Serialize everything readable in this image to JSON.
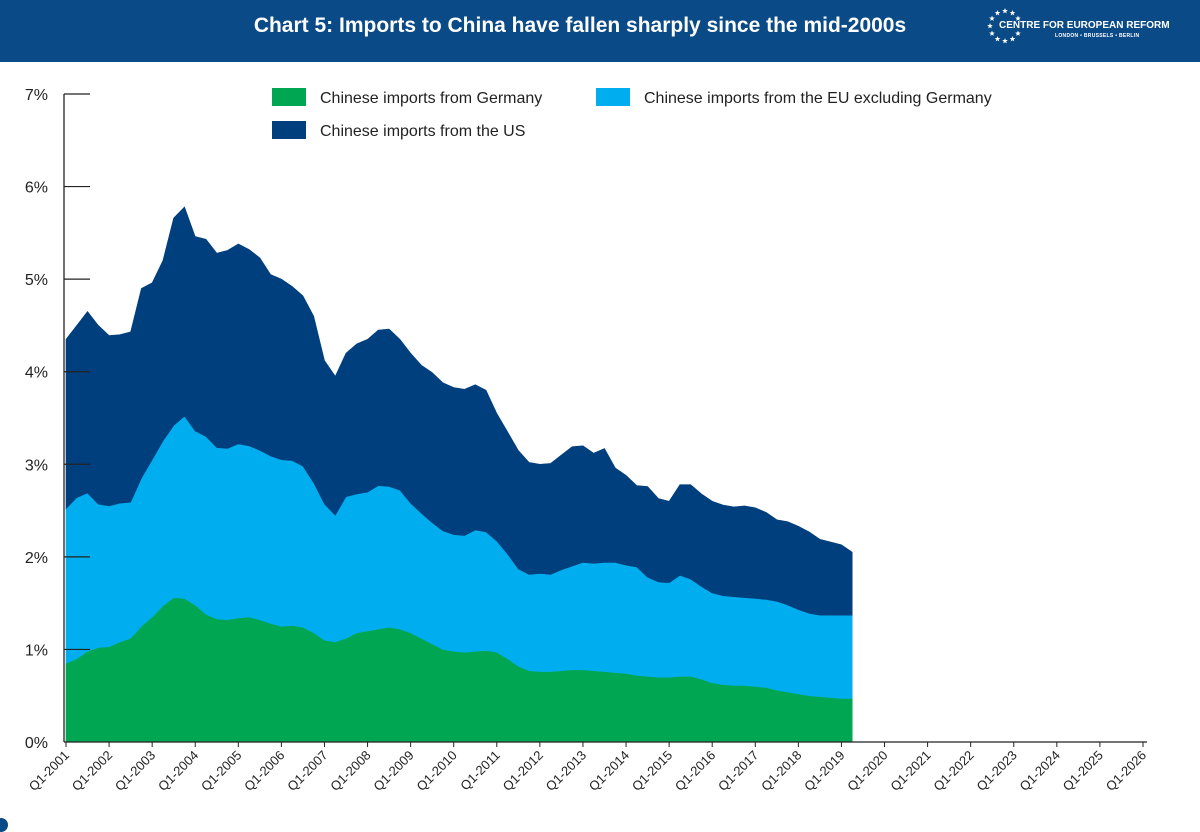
{
  "header": {
    "title": "Chart 5: Imports to China have fallen sharply since the mid-2000s",
    "logo_name": "CENTRE FOR EUROPEAN REFORM",
    "logo_cities": "LONDON • BRUSSELS • BERLIN"
  },
  "colors": {
    "header_bg": "#0a4a86",
    "germany": "#00a651",
    "eu_ex_germany": "#00aeef",
    "us": "#003f7d"
  },
  "chart_data": {
    "type": "area",
    "stacked": true,
    "title": "Chart 5: Imports to China have fallen sharply since the mid-2000s",
    "xlabel": "",
    "ylabel": "",
    "ylim": [
      0,
      7
    ],
    "yticks": [
      0,
      1,
      2,
      3,
      4,
      5,
      6,
      7
    ],
    "ytick_labels": [
      "0%",
      "1%",
      "2%",
      "3%",
      "4%",
      "5%",
      "6%",
      "7%"
    ],
    "xtick_labels": [
      "Q1-2001",
      "Q1-2002",
      "Q1-2003",
      "Q1-2004",
      "Q1-2005",
      "Q1-2006",
      "Q1-2007",
      "Q1-2008",
      "Q1-2009",
      "Q1-2010",
      "Q1-2011",
      "Q1-2012",
      "Q1-2013",
      "Q1-2014",
      "Q1-2015",
      "Q1-2016",
      "Q1-2017",
      "Q1-2018",
      "Q1-2019",
      "Q1-2020",
      "Q1-2021",
      "Q1-2022",
      "Q1-2023",
      "Q1-2024",
      "Q1-2025",
      "Q1-2026"
    ],
    "x_start": 2001.0,
    "x_step": 0.25,
    "grid": false,
    "legend_position": "top",
    "series": [
      {
        "name": "Chinese imports from Germany",
        "color": "#00a651",
        "values": [
          0.85,
          0.9,
          0.98,
          1.02,
          1.03,
          1.08,
          1.12,
          1.25,
          1.35,
          1.47,
          1.56,
          1.55,
          1.48,
          1.38,
          1.33,
          1.32,
          1.34,
          1.35,
          1.32,
          1.28,
          1.25,
          1.26,
          1.24,
          1.18,
          1.1,
          1.08,
          1.12,
          1.18,
          1.2,
          1.22,
          1.24,
          1.22,
          1.18,
          1.12,
          1.06,
          1.0,
          0.98,
          0.97,
          0.98,
          0.99,
          0.97,
          0.9,
          0.82,
          0.77,
          0.76,
          0.76,
          0.77,
          0.78,
          0.78,
          0.77,
          0.76,
          0.75,
          0.74,
          0.72,
          0.71,
          0.7,
          0.7,
          0.71,
          0.71,
          0.68,
          0.64,
          0.62,
          0.61,
          0.61,
          0.6,
          0.59,
          0.56,
          0.54,
          0.52,
          0.5,
          0.49,
          0.48,
          0.47,
          0.47
        ]
      },
      {
        "name": "Chinese imports from the EU excluding Germany",
        "color": "#00aeef",
        "values": [
          1.67,
          1.74,
          1.71,
          1.55,
          1.52,
          1.5,
          1.47,
          1.6,
          1.7,
          1.78,
          1.86,
          1.97,
          1.88,
          1.92,
          1.85,
          1.85,
          1.88,
          1.85,
          1.83,
          1.81,
          1.8,
          1.78,
          1.74,
          1.62,
          1.47,
          1.37,
          1.53,
          1.5,
          1.5,
          1.55,
          1.52,
          1.5,
          1.4,
          1.35,
          1.31,
          1.28,
          1.26,
          1.26,
          1.31,
          1.28,
          1.2,
          1.13,
          1.05,
          1.04,
          1.06,
          1.05,
          1.09,
          1.12,
          1.16,
          1.16,
          1.18,
          1.19,
          1.17,
          1.17,
          1.07,
          1.03,
          1.02,
          1.09,
          1.05,
          1.0,
          0.97,
          0.96,
          0.96,
          0.95,
          0.95,
          0.95,
          0.96,
          0.94,
          0.91,
          0.89,
          0.88,
          0.89,
          0.9,
          0.9
        ]
      },
      {
        "name": "Chinese imports from the US",
        "color": "#003f7d",
        "values": [
          1.83,
          1.86,
          1.96,
          1.93,
          1.84,
          1.82,
          1.84,
          2.05,
          1.91,
          1.95,
          2.24,
          2.26,
          2.1,
          2.13,
          2.1,
          2.14,
          2.16,
          2.12,
          2.08,
          1.96,
          1.95,
          1.88,
          1.84,
          1.8,
          1.55,
          1.5,
          1.55,
          1.62,
          1.65,
          1.68,
          1.7,
          1.63,
          1.62,
          1.6,
          1.62,
          1.6,
          1.59,
          1.58,
          1.57,
          1.53,
          1.38,
          1.32,
          1.28,
          1.21,
          1.18,
          1.2,
          1.24,
          1.29,
          1.26,
          1.19,
          1.23,
          1.02,
          0.97,
          0.88,
          0.98,
          0.9,
          0.88,
          0.98,
          1.02,
          1.0,
          0.99,
          0.98,
          0.97,
          0.99,
          0.98,
          0.94,
          0.88,
          0.9,
          0.9,
          0.88,
          0.82,
          0.79,
          0.76,
          0.68
        ]
      }
    ]
  }
}
